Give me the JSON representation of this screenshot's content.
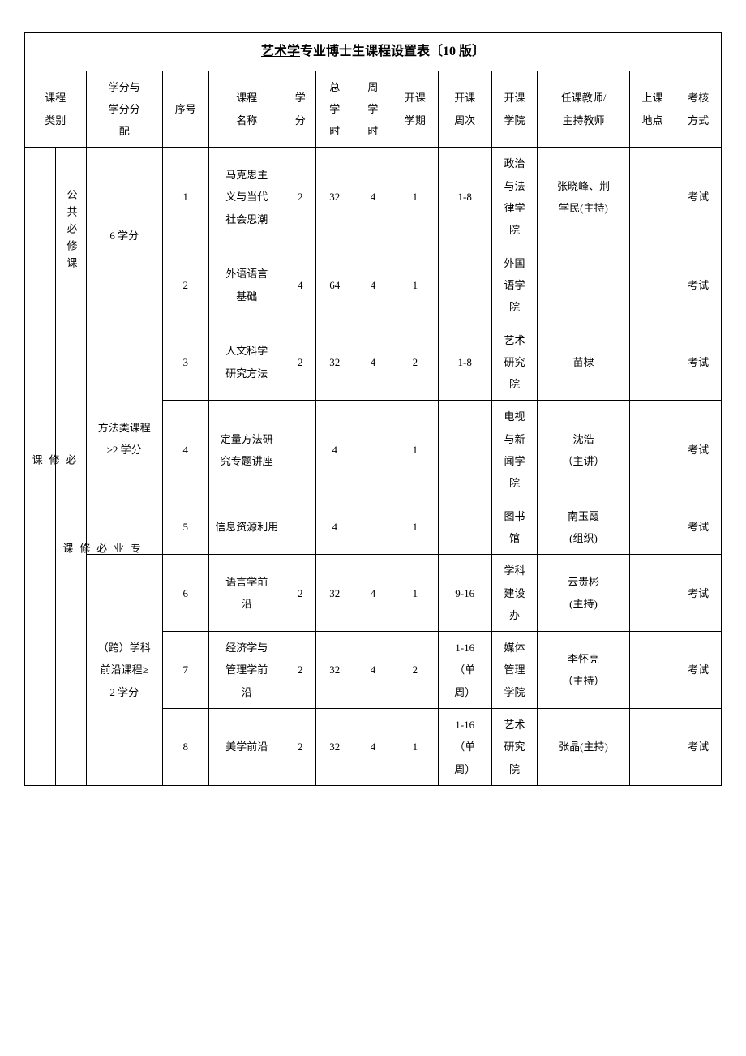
{
  "title_underline": "艺术学",
  "title_rest": "专业博士生课程设置表〔10 版〕",
  "headers": {
    "cat": "课程\n类别",
    "credit_alloc": "学分与\n学分分\n配",
    "seq": "序号",
    "course": "课程\n名称",
    "credit": "学\n分",
    "total": "总\n学\n时",
    "week": "周\n学\n时",
    "sem": "开课\n学期",
    "weeks": "开课\n周次",
    "school": "开课\n学院",
    "teacher": "任课教师/\n主持教师",
    "loc": "上课\n地点",
    "exam": "考核\n方式"
  },
  "supercat": "必\n修\n课",
  "subcat_public": "公共必修课",
  "subcat_major": "专\n业\n必\n修\n课",
  "alloc_public": "6 学分",
  "alloc_method": "方法类课程\n≥2 学分",
  "alloc_frontier": "（跨）学科\n前沿课程≥\n2 学分",
  "rows": [
    {
      "seq": "1",
      "course": "马克思主\n义与当代\n社会思潮",
      "credit": "2",
      "total": "32",
      "week": "4",
      "sem": "1",
      "weeks": "1-8",
      "school": "政治\n与法\n律学\n院",
      "teacher": "张晓峰、荆\n学民(主持)",
      "loc": "",
      "exam": "考试"
    },
    {
      "seq": "2",
      "course": "外语语言\n基础",
      "credit": "4",
      "total": "64",
      "week": "4",
      "sem": "1",
      "weeks": "",
      "school": "外国\n语学\n院",
      "teacher": "",
      "loc": "",
      "exam": "考试"
    },
    {
      "seq": "3",
      "course": "人文科学\n研究方法",
      "credit": "2",
      "total": "32",
      "week": "4",
      "sem": "2",
      "weeks": "1-8",
      "school": "艺术\n研究\n院",
      "teacher": "苗棣",
      "loc": "",
      "exam": "考试"
    },
    {
      "seq": "4",
      "course": "定量方法研\n究专题讲座",
      "credit": "",
      "total": "4",
      "week": "",
      "sem": "1",
      "weeks": "",
      "school": "电视\n与新\n闻学\n院",
      "teacher": "沈浩\n（主讲）",
      "loc": "",
      "exam": "考试"
    },
    {
      "seq": "5",
      "course": "信息资源利用",
      "credit": "",
      "total": "4",
      "week": "",
      "sem": "1",
      "weeks": "",
      "school": "图书\n馆",
      "teacher": "南玉霞\n(组织)",
      "loc": "",
      "exam": "考试"
    },
    {
      "seq": "6",
      "course": "语言学前\n沿",
      "credit": "2",
      "total": "32",
      "week": "4",
      "sem": "1",
      "weeks": "9-16",
      "school": "学科\n建设\n办",
      "teacher": "云贵彬\n(主持)",
      "loc": "",
      "exam": "考试"
    },
    {
      "seq": "7",
      "course": "经济学与\n管理学前\n沿",
      "credit": "2",
      "total": "32",
      "week": "4",
      "sem": "2",
      "weeks": "1-16\n（单\n周）",
      "school": "媒体\n管理\n学院",
      "teacher": "李怀亮\n（主持）",
      "loc": "",
      "exam": "考试"
    },
    {
      "seq": "8",
      "course": "美学前沿",
      "credit": "2",
      "total": "32",
      "week": "4",
      "sem": "1",
      "weeks": "1-16\n（单\n周）",
      "school": "艺术\n研究\n院",
      "teacher": "张晶(主持)",
      "loc": "",
      "exam": "考试"
    }
  ]
}
